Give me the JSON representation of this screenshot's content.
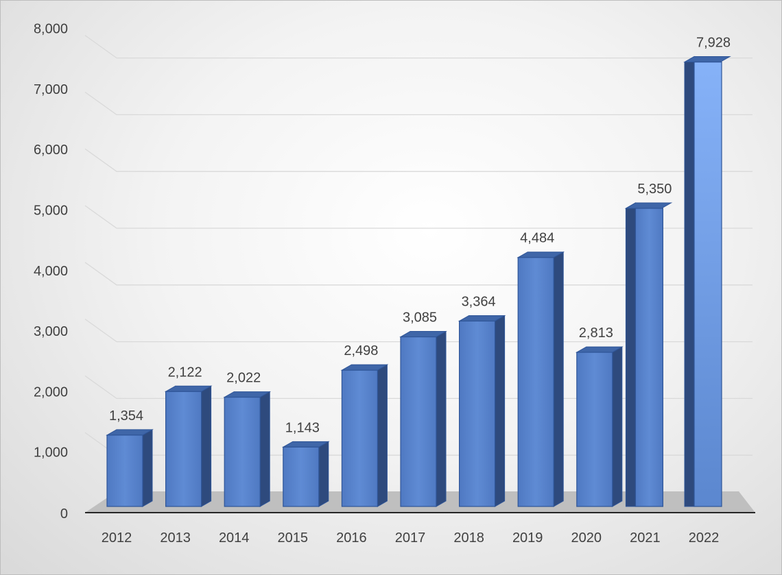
{
  "chart_data": {
    "type": "bar",
    "categories": [
      "2012",
      "2013",
      "2014",
      "2015",
      "2016",
      "2017",
      "2018",
      "2019",
      "2020",
      "2021",
      "2022"
    ],
    "values": [
      1354,
      2122,
      2022,
      1143,
      2498,
      3085,
      3364,
      4484,
      2813,
      5350,
      7928
    ],
    "value_labels": [
      "1,354",
      "2,122",
      "2,022",
      "1,143",
      "2,498",
      "3,085",
      "3,364",
      "4,484",
      "2,813",
      "5,350",
      "7,928"
    ],
    "yticks": [
      0,
      1000,
      2000,
      3000,
      4000,
      5000,
      6000,
      7000,
      8000
    ],
    "ytick_labels": [
      "0",
      "1,000",
      "2,000",
      "3,000",
      "4,000",
      "5,000",
      "6,000",
      "7,000",
      "8,000"
    ],
    "ylim": [
      0,
      8000
    ],
    "grid": true,
    "legend": "none",
    "title": "",
    "xlabel": "",
    "ylabel": "",
    "colors": {
      "bar_front": "#5b87cf",
      "bar_front_edge": "#2f5597",
      "bar_side": "#2e4a7d",
      "bar_top": "#3f66a8",
      "highlight_front": "#7aa6f0",
      "floor": "#bfbfbf",
      "grid": "#d9d9d9",
      "axis": "#262626"
    }
  }
}
